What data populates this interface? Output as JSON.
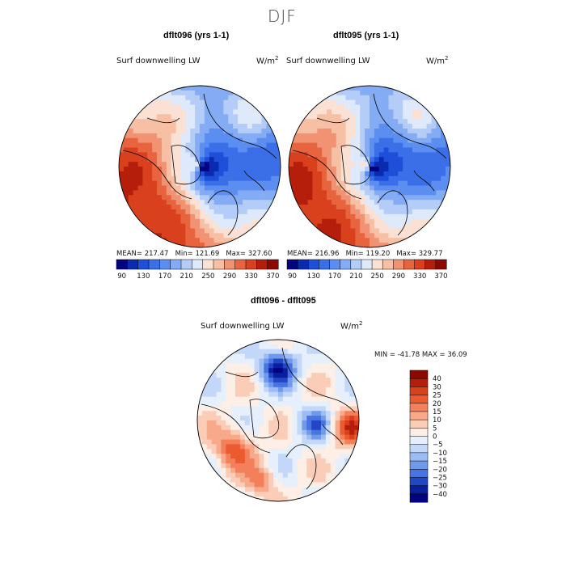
{
  "figure": {
    "title": "DJF",
    "units_base": "W/m",
    "units_exp": "2"
  },
  "panels": [
    {
      "case_title": "dflt096 (yrs 1-1)",
      "variable": "Surf downwelling LW",
      "stats": {
        "mean_label": "MEAN=",
        "mean": "217.47",
        "min_label": "Min=",
        "min": "121.69",
        "max_label": "Max=",
        "max": "327.60"
      }
    },
    {
      "case_title": "dflt095 (yrs 1-1)",
      "variable": "Surf downwelling LW",
      "stats": {
        "mean_label": "MEAN=",
        "mean": "216.96",
        "min_label": "Min=",
        "min": "119.20",
        "max_label": "Max=",
        "max": "329.77"
      }
    },
    {
      "case_title": "dflt096 - dflt095",
      "variable": "Surf downwelling LW",
      "stats": {
        "min_label": "MIN =",
        "min": "-41.78",
        "max_label": "MAX =",
        "max": "36.09"
      }
    }
  ],
  "chart_data": [
    {
      "type": "heatmap",
      "projection": "north polar stereographic",
      "title": "dflt096 (yrs 1-1)",
      "variable": "Surf downwelling LW",
      "units": "W/m2",
      "mean": 217.47,
      "min": 121.69,
      "max": 327.6,
      "colorbar": {
        "orientation": "horizontal",
        "levels": [
          90,
          110,
          130,
          150,
          170,
          190,
          210,
          230,
          250,
          270,
          290,
          310,
          330,
          350,
          370
        ],
        "tick_labels": [
          "90",
          "130",
          "170",
          "210",
          "250",
          "290",
          "330",
          "370"
        ],
        "colors": [
          "#04047f",
          "#0a2bb0",
          "#1e4fd8",
          "#3a6fe8",
          "#5b8ef0",
          "#84acf4",
          "#b4cdf8",
          "#dee9fb",
          "#fbe1d3",
          "#f7bfa4",
          "#f19272",
          "#e8643f",
          "#d9401d",
          "#b51e0a",
          "#8a0a03"
        ]
      }
    },
    {
      "type": "heatmap",
      "projection": "north polar stereographic",
      "title": "dflt095 (yrs 1-1)",
      "variable": "Surf downwelling LW",
      "units": "W/m2",
      "mean": 216.96,
      "min": 119.2,
      "max": 329.77,
      "colorbar": {
        "orientation": "horizontal",
        "levels": [
          90,
          110,
          130,
          150,
          170,
          190,
          210,
          230,
          250,
          270,
          290,
          310,
          330,
          350,
          370
        ],
        "tick_labels": [
          "90",
          "130",
          "170",
          "210",
          "250",
          "290",
          "330",
          "370"
        ],
        "colors": [
          "#04047f",
          "#0a2bb0",
          "#1e4fd8",
          "#3a6fe8",
          "#5b8ef0",
          "#84acf4",
          "#b4cdf8",
          "#dee9fb",
          "#fbe1d3",
          "#f7bfa4",
          "#f19272",
          "#e8643f",
          "#d9401d",
          "#b51e0a",
          "#8a0a03"
        ]
      }
    },
    {
      "type": "heatmap",
      "projection": "north polar stereographic",
      "title": "dflt096 - dflt095",
      "variable": "Surf downwelling LW",
      "units": "W/m2",
      "min": -41.78,
      "max": 36.09,
      "colorbar": {
        "orientation": "vertical",
        "tick_labels": [
          "40",
          "30",
          "25",
          "20",
          "15",
          "10",
          "5",
          "0",
          "-5",
          "-10",
          "-15",
          "-20",
          "-25",
          "-30",
          "-40"
        ],
        "colors": [
          "#8a0a03",
          "#b51e0a",
          "#d9401d",
          "#ec5a30",
          "#f3805a",
          "#f7a98a",
          "#fbcdb8",
          "#fdeee6",
          "#e6effc",
          "#c3d7f8",
          "#9cbdf3",
          "#7099ea",
          "#4873e0",
          "#2246c4",
          "#0a1f9e",
          "#04047f"
        ]
      }
    }
  ]
}
